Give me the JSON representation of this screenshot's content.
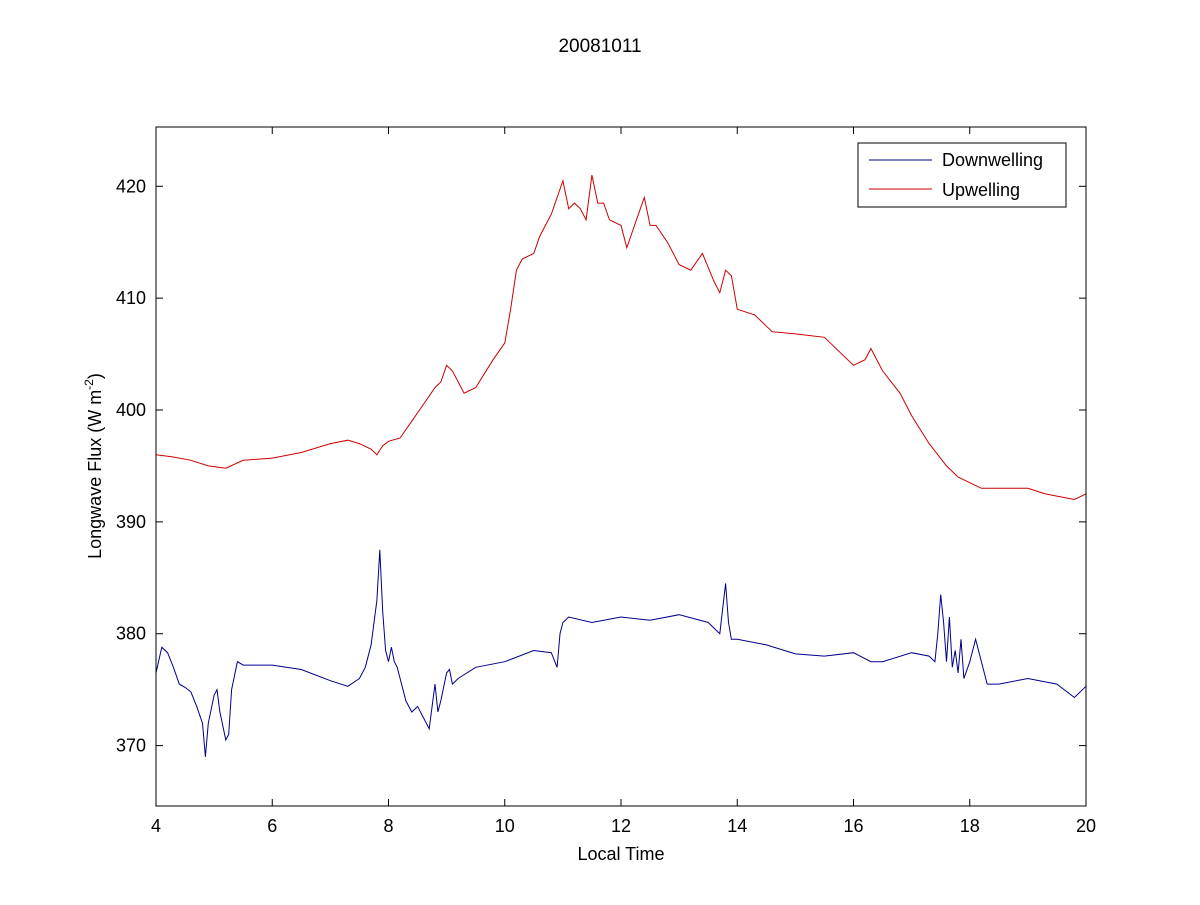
{
  "chart_data": {
    "type": "line",
    "title": "20081011",
    "xlabel": "Local Time",
    "ylabel_main": "Longwave Flux (W m",
    "ylabel_sup": "-2",
    "ylabel_close": ")",
    "xlim": [
      4,
      20
    ],
    "ylim": [
      364.6,
      425.3
    ],
    "xticks": [
      4,
      6,
      8,
      10,
      12,
      14,
      16,
      18,
      20
    ],
    "yticks": [
      370,
      380,
      390,
      400,
      410,
      420
    ],
    "grid": false,
    "legend": {
      "placement": "top-right"
    },
    "series": [
      {
        "name": "Downwelling",
        "color": "#00008b",
        "x": [
          4.0,
          4.1,
          4.2,
          4.3,
          4.4,
          4.5,
          4.6,
          4.7,
          4.8,
          4.85,
          4.9,
          5.0,
          5.05,
          5.1,
          5.2,
          5.25,
          5.3,
          5.4,
          5.5,
          6.0,
          6.5,
          7.0,
          7.3,
          7.5,
          7.6,
          7.7,
          7.8,
          7.85,
          7.9,
          7.95,
          8.0,
          8.05,
          8.1,
          8.15,
          8.2,
          8.3,
          8.4,
          8.5,
          8.6,
          8.7,
          8.8,
          8.85,
          8.9,
          9.0,
          9.05,
          9.1,
          9.2,
          9.5,
          10.0,
          10.5,
          10.8,
          10.9,
          10.95,
          11.0,
          11.1,
          11.5,
          12.0,
          12.5,
          13.0,
          13.5,
          13.7,
          13.8,
          13.85,
          13.9,
          14.0,
          14.5,
          15.0,
          15.5,
          16.0,
          16.3,
          16.5,
          17.0,
          17.3,
          17.4,
          17.45,
          17.5,
          17.55,
          17.6,
          17.65,
          17.7,
          17.75,
          17.8,
          17.85,
          17.9,
          18.0,
          18.1,
          18.2,
          18.3,
          18.5,
          19.0,
          19.5,
          19.8,
          20.0
        ],
        "y": [
          376.5,
          378.8,
          378.3,
          377.0,
          375.5,
          375.2,
          374.8,
          373.5,
          372.0,
          369.0,
          372.0,
          374.5,
          375.0,
          373.0,
          370.5,
          371.0,
          375.0,
          377.5,
          377.2,
          377.2,
          376.8,
          375.8,
          375.3,
          376.0,
          377.0,
          379.0,
          383.0,
          387.5,
          382.0,
          378.5,
          377.5,
          378.8,
          377.5,
          377.0,
          376.0,
          374.0,
          373.0,
          373.5,
          372.5,
          371.5,
          375.5,
          373.0,
          374.0,
          376.5,
          376.8,
          375.5,
          376.0,
          377.0,
          377.5,
          378.5,
          378.3,
          377.0,
          380.0,
          381.0,
          381.5,
          381.0,
          381.5,
          381.2,
          381.7,
          381.0,
          380.0,
          384.5,
          381.0,
          379.5,
          379.5,
          379.0,
          378.2,
          378.0,
          378.3,
          377.5,
          377.5,
          378.3,
          378.0,
          377.5,
          380.0,
          383.5,
          381.0,
          377.5,
          381.5,
          377.0,
          378.5,
          376.5,
          379.5,
          376.0,
          377.5,
          379.5,
          377.5,
          375.5,
          375.5,
          376.0,
          375.5,
          374.3,
          375.3
        ]
      },
      {
        "name": "Upwelling",
        "color": "#cc0000",
        "x": [
          4.0,
          4.3,
          4.6,
          4.9,
          5.2,
          5.5,
          6.0,
          6.5,
          7.0,
          7.3,
          7.5,
          7.7,
          7.8,
          7.9,
          8.0,
          8.2,
          8.4,
          8.6,
          8.8,
          8.9,
          9.0,
          9.1,
          9.3,
          9.5,
          9.8,
          10.0,
          10.1,
          10.2,
          10.3,
          10.5,
          10.6,
          10.7,
          10.8,
          10.9,
          11.0,
          11.1,
          11.2,
          11.3,
          11.4,
          11.5,
          11.6,
          11.7,
          11.8,
          12.0,
          12.1,
          12.2,
          12.3,
          12.4,
          12.5,
          12.6,
          12.8,
          13.0,
          13.2,
          13.4,
          13.6,
          13.7,
          13.8,
          13.9,
          14.0,
          14.3,
          14.6,
          15.0,
          15.5,
          16.0,
          16.2,
          16.3,
          16.5,
          16.8,
          17.0,
          17.3,
          17.6,
          17.8,
          18.0,
          18.2,
          18.5,
          19.0,
          19.3,
          19.6,
          19.8,
          20.0
        ],
        "y": [
          396.0,
          395.8,
          395.5,
          395.0,
          394.8,
          395.5,
          395.7,
          396.2,
          397.0,
          397.3,
          397.0,
          396.5,
          396.0,
          396.8,
          397.2,
          397.5,
          399.0,
          400.5,
          402.0,
          402.5,
          404.0,
          403.5,
          401.5,
          402.0,
          404.5,
          406.0,
          409.0,
          412.5,
          413.5,
          414.0,
          415.5,
          416.5,
          417.5,
          419.0,
          420.5,
          418.0,
          418.5,
          418.0,
          417.0,
          421.0,
          418.5,
          418.5,
          417.0,
          416.5,
          414.5,
          416.0,
          417.5,
          419.0,
          416.5,
          416.5,
          415.0,
          413.0,
          412.5,
          414.0,
          411.5,
          410.5,
          412.5,
          412.0,
          409.0,
          408.5,
          407.0,
          406.8,
          406.5,
          404.0,
          404.5,
          405.5,
          403.5,
          401.5,
          399.5,
          397.0,
          395.0,
          394.0,
          393.5,
          393.0,
          393.0,
          393.0,
          392.5,
          392.2,
          392.0,
          392.5
        ]
      }
    ]
  }
}
